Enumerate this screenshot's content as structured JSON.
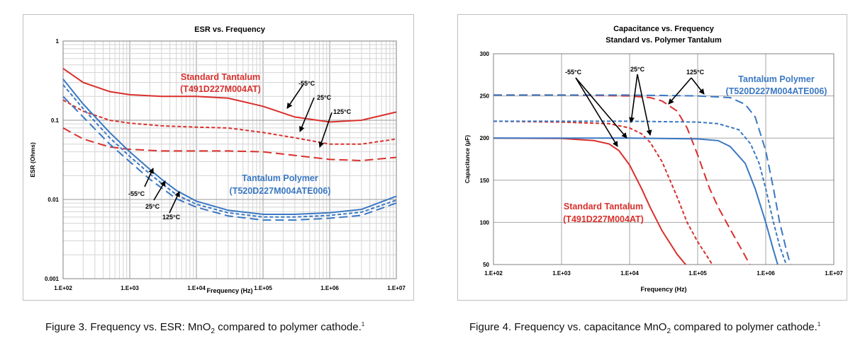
{
  "chart_data": [
    {
      "type": "line",
      "title": "ESR vs. Frequency",
      "xlabel": "Frequency (Hz)",
      "ylabel": "ESR (Ohms)",
      "xscale": "log",
      "yscale": "log",
      "xlim": [
        100,
        10000000
      ],
      "ylim": [
        0.001,
        1
      ],
      "x_ticks": [
        "1.E+02",
        "1.E+03",
        "1.E+04",
        "1.E+05",
        "1.E+06",
        "1.E+07"
      ],
      "y_ticks": [
        "0.001",
        "0.01",
        "0.1",
        "1"
      ],
      "grid": true,
      "legend": "none",
      "colors": {
        "standard": "#d9302c",
        "polymer": "#3a78c3"
      },
      "groups": [
        {
          "name": "Standard Tantalum",
          "part": "(T491D227M004AT)",
          "color": "#d9302c"
        },
        {
          "name": "Tantalum Polymer",
          "part": "(T520D227M004ATE006)",
          "color": "#3a78c3"
        }
      ],
      "series": [
        {
          "group": "standard",
          "temp": "-55°C",
          "style": "solid",
          "points": [
            [
              100,
              0.45
            ],
            [
              200,
              0.3
            ],
            [
              500,
              0.23
            ],
            [
              1000,
              0.21
            ],
            [
              3000,
              0.2
            ],
            [
              10000,
              0.2
            ],
            [
              30000,
              0.19
            ],
            [
              100000,
              0.15
            ],
            [
              300000,
              0.11
            ],
            [
              1000000,
              0.095
            ],
            [
              3000000,
              0.1
            ],
            [
              10000000,
              0.127
            ]
          ]
        },
        {
          "group": "standard",
          "temp": "25°C",
          "style": "short-dash",
          "points": [
            [
              100,
              0.18
            ],
            [
              200,
              0.13
            ],
            [
              500,
              0.1
            ],
            [
              1000,
              0.092
            ],
            [
              3000,
              0.085
            ],
            [
              10000,
              0.082
            ],
            [
              30000,
              0.08
            ],
            [
              100000,
              0.07
            ],
            [
              300000,
              0.06
            ],
            [
              1000000,
              0.05
            ],
            [
              3000000,
              0.05
            ],
            [
              10000000,
              0.058
            ]
          ]
        },
        {
          "group": "standard",
          "temp": "125°C",
          "style": "long-dash",
          "points": [
            [
              100,
              0.08
            ],
            [
              200,
              0.058
            ],
            [
              500,
              0.046
            ],
            [
              1000,
              0.043
            ],
            [
              3000,
              0.041
            ],
            [
              10000,
              0.041
            ],
            [
              30000,
              0.041
            ],
            [
              100000,
              0.04
            ],
            [
              300000,
              0.036
            ],
            [
              1000000,
              0.032
            ],
            [
              3000000,
              0.031
            ],
            [
              10000000,
              0.034
            ]
          ]
        },
        {
          "group": "polymer",
          "temp": "-55°C",
          "style": "solid",
          "points": [
            [
              100,
              0.33
            ],
            [
              200,
              0.16
            ],
            [
              500,
              0.07
            ],
            [
              1000,
              0.04
            ],
            [
              2000,
              0.024
            ],
            [
              3000,
              0.018
            ],
            [
              5000,
              0.013
            ],
            [
              10000,
              0.0095
            ],
            [
              30000,
              0.0073
            ],
            [
              100000,
              0.0065
            ],
            [
              300000,
              0.0065
            ],
            [
              1000000,
              0.0068
            ],
            [
              3000000,
              0.0075
            ],
            [
              10000000,
              0.011
            ]
          ]
        },
        {
          "group": "polymer",
          "temp": "25°C",
          "style": "short-dash",
          "points": [
            [
              100,
              0.28
            ],
            [
              200,
              0.14
            ],
            [
              500,
              0.06
            ],
            [
              1000,
              0.035
            ],
            [
              2000,
              0.021
            ],
            [
              3000,
              0.016
            ],
            [
              5000,
              0.0115
            ],
            [
              10000,
              0.0087
            ],
            [
              30000,
              0.0068
            ],
            [
              100000,
              0.006
            ],
            [
              300000,
              0.006
            ],
            [
              1000000,
              0.0063
            ],
            [
              3000000,
              0.0069
            ],
            [
              10000000,
              0.0098
            ]
          ]
        },
        {
          "group": "polymer",
          "temp": "125°C",
          "style": "long-dash",
          "points": [
            [
              100,
              0.2
            ],
            [
              200,
              0.11
            ],
            [
              500,
              0.05
            ],
            [
              1000,
              0.03
            ],
            [
              2000,
              0.018
            ],
            [
              3000,
              0.014
            ],
            [
              5000,
              0.0102
            ],
            [
              10000,
              0.008
            ],
            [
              30000,
              0.0062
            ],
            [
              100000,
              0.0055
            ],
            [
              300000,
              0.0055
            ],
            [
              1000000,
              0.0058
            ],
            [
              3000000,
              0.0063
            ],
            [
              10000000,
              0.009
            ]
          ]
        }
      ],
      "annotations": [
        {
          "text": "-55°C",
          "color": "#000000"
        },
        {
          "text": "25°C",
          "color": "#000000"
        },
        {
          "text": "125°C",
          "color": "#000000"
        },
        {
          "text": "-55°C",
          "color": "#000000"
        },
        {
          "text": "25°C",
          "color": "#000000"
        },
        {
          "text": "125°C",
          "color": "#000000"
        }
      ]
    },
    {
      "type": "line",
      "title": "Capacitance vs. Frequency",
      "subtitle": "Standard vs. Polymer Tantalum",
      "xlabel": "Frequency (Hz)",
      "ylabel": "Capacitance (µF)",
      "xscale": "log",
      "xlim": [
        100,
        10000000
      ],
      "ylim": [
        50,
        300
      ],
      "x_ticks": [
        "1.E+02",
        "1.E+03",
        "1.E+04",
        "1.E+05",
        "1.E+06",
        "1.E+07"
      ],
      "y_ticks": [
        "50",
        "100",
        "150",
        "200",
        "250",
        "300"
      ],
      "grid": true,
      "legend": "none",
      "groups": [
        {
          "name": "Tantalum Polymer",
          "part": "(T520D227M004ATE006)",
          "color": "#3a78c3"
        },
        {
          "name": "Standard Tantalum",
          "part": "(T491D227M004AT)",
          "color": "#d9302c"
        }
      ],
      "series": [
        {
          "group": "standard",
          "temp": "-55°C",
          "style": "solid",
          "points": [
            [
              100,
              200
            ],
            [
              1000,
              199.5
            ],
            [
              3000,
              197
            ],
            [
              5000,
              193
            ],
            [
              7000,
              185
            ],
            [
              10000,
              168
            ],
            [
              15000,
              140
            ],
            [
              20000,
              118
            ],
            [
              30000,
              90
            ],
            [
              50000,
              62
            ],
            [
              70000,
              48
            ]
          ]
        },
        {
          "group": "standard",
          "temp": "25°C",
          "style": "short-dash",
          "points": [
            [
              100,
              220
            ],
            [
              1000,
              219
            ],
            [
              5000,
              217
            ],
            [
              10000,
              212
            ],
            [
              15000,
              205
            ],
            [
              20000,
              195
            ],
            [
              30000,
              172
            ],
            [
              50000,
              130
            ],
            [
              70000,
              100
            ],
            [
              100000,
              77
            ],
            [
              150000,
              55
            ],
            [
              170000,
              48
            ]
          ]
        },
        {
          "group": "standard",
          "temp": "125°C",
          "style": "long-dash",
          "points": [
            [
              100,
              251
            ],
            [
              1000,
              251
            ],
            [
              10000,
              250
            ],
            [
              20000,
              248
            ],
            [
              30000,
              244
            ],
            [
              50000,
              232
            ],
            [
              70000,
              212
            ],
            [
              100000,
              180
            ],
            [
              150000,
              140
            ],
            [
              200000,
              118
            ],
            [
              300000,
              92
            ],
            [
              500000,
              60
            ],
            [
              600000,
              48
            ]
          ]
        },
        {
          "group": "polymer",
          "temp": "-55°C",
          "style": "solid",
          "points": [
            [
              100,
              200
            ],
            [
              10000,
              200
            ],
            [
              100000,
              199
            ],
            [
              200000,
              197
            ],
            [
              300000,
              190
            ],
            [
              500000,
              170
            ],
            [
              700000,
              140
            ],
            [
              1000000,
              100
            ],
            [
              1300000,
              67
            ],
            [
              1500000,
              50
            ]
          ]
        },
        {
          "group": "polymer",
          "temp": "25°C",
          "style": "short-dash",
          "points": [
            [
              100,
              220
            ],
            [
              10000,
              220
            ],
            [
              100000,
              219
            ],
            [
              200000,
              217
            ],
            [
              400000,
              210
            ],
            [
              600000,
              193
            ],
            [
              800000,
              170
            ],
            [
              1000000,
              140
            ],
            [
              1300000,
              100
            ],
            [
              1600000,
              72
            ],
            [
              2000000,
              50
            ]
          ]
        },
        {
          "group": "polymer",
          "temp": "125°C",
          "style": "long-dash",
          "points": [
            [
              100,
              251
            ],
            [
              10000,
              251
            ],
            [
              100000,
              250
            ],
            [
              300000,
              248
            ],
            [
              500000,
              240
            ],
            [
              700000,
              225
            ],
            [
              1000000,
              185
            ],
            [
              1300000,
              140
            ],
            [
              1600000,
              100
            ],
            [
              2000000,
              68
            ],
            [
              2300000,
              50
            ]
          ]
        }
      ],
      "annotations": [
        {
          "text": "-55°C",
          "color": "#000000"
        },
        {
          "text": "25°C",
          "color": "#000000"
        },
        {
          "text": "125°C",
          "color": "#000000"
        }
      ]
    }
  ],
  "captions": {
    "fig3_pre": "Figure 3. Frequency vs. ESR: MnO",
    "fig3_sub": "2",
    "fig3_post": " compared to polymer cathode.",
    "fig3_sup": "1",
    "fig4_pre": "Figure 4. Frequency vs. capacitance MnO",
    "fig4_sub": "2",
    "fig4_post": " compared to polymer cathode.",
    "fig4_sup": "1"
  }
}
